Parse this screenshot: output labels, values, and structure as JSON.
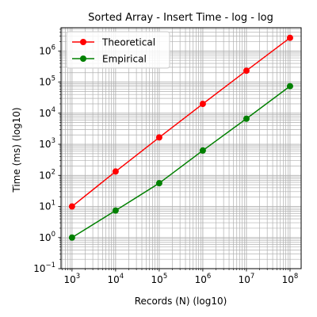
{
  "chart_data": {
    "type": "line",
    "title": "Sorted Array - Insert Time - log - log",
    "xlabel": "Records (N) (log10)",
    "ylabel": "Time (ms) (log10)",
    "x_scale": "log",
    "y_scale": "log",
    "xlim": [
      560,
      180000000
    ],
    "ylim": [
      0.1,
      5600000
    ],
    "x_ticks": [
      {
        "value": 1000,
        "base": "10",
        "exp": "3"
      },
      {
        "value": 10000,
        "base": "10",
        "exp": "4"
      },
      {
        "value": 100000,
        "base": "10",
        "exp": "5"
      },
      {
        "value": 1000000,
        "base": "10",
        "exp": "6"
      },
      {
        "value": 10000000,
        "base": "10",
        "exp": "7"
      },
      {
        "value": 100000000,
        "base": "10",
        "exp": "8"
      }
    ],
    "y_ticks": [
      {
        "value": 0.1,
        "base": "10",
        "exp": "−1"
      },
      {
        "value": 1,
        "base": "10",
        "exp": "0"
      },
      {
        "value": 10,
        "base": "10",
        "exp": "1"
      },
      {
        "value": 100,
        "base": "10",
        "exp": "2"
      },
      {
        "value": 1000,
        "base": "10",
        "exp": "3"
      },
      {
        "value": 10000,
        "base": "10",
        "exp": "4"
      },
      {
        "value": 100000,
        "base": "10",
        "exp": "5"
      },
      {
        "value": 1000000,
        "base": "10",
        "exp": "6"
      }
    ],
    "grid": true,
    "legend_position": "top-left",
    "x": [
      1000,
      10000,
      100000,
      1000000,
      10000000,
      100000000
    ],
    "series": [
      {
        "name": "Theoretical",
        "color": "#ff0000",
        "marker": "circle",
        "values": [
          10,
          133,
          1661,
          19932,
          232535,
          2657532
        ]
      },
      {
        "name": "Empirical",
        "color": "#008000",
        "marker": "circle",
        "values": [
          1.0,
          7.4,
          56,
          630,
          6650,
          74000
        ]
      }
    ]
  }
}
